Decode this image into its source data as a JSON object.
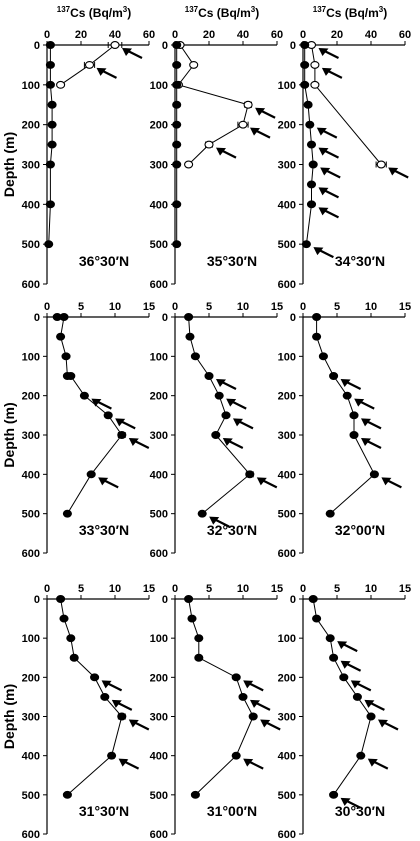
{
  "figure": {
    "header_label": "Cs (Bq/m",
    "header_isotope_mass": "137",
    "header_unit_exponent": "3",
    "header_close": ")",
    "ylabel": "Depth (m)"
  },
  "colors": {
    "ink": "#000000",
    "background": "#ffffff",
    "open_marker_fill": "#ffffff"
  },
  "chart_data": [
    {
      "type": "line",
      "title": "36°30′N",
      "xlim": [
        0,
        60
      ],
      "xticks": [
        "0",
        "20",
        "40",
        "60"
      ],
      "ylim": [
        0,
        600
      ],
      "yticks": [
        "0",
        "100",
        "200",
        "300",
        "400",
        "500",
        "600"
      ],
      "ylabel": "Depth (m)",
      "header": true,
      "series": [
        {
          "marker": "open",
          "x": [
            40,
            25,
            8
          ],
          "y": [
            0,
            50,
            100
          ],
          "err": [
            4,
            3,
            1
          ],
          "arrows": [
            true,
            true,
            false
          ]
        },
        {
          "marker": "filled",
          "x": [
            2,
            2,
            2,
            3,
            3,
            3,
            2,
            2,
            1
          ],
          "y": [
            0,
            50,
            100,
            150,
            200,
            250,
            300,
            400,
            500
          ],
          "err": [
            0,
            0,
            0,
            0,
            0,
            0,
            0,
            0,
            0
          ],
          "arrows": [
            false,
            false,
            false,
            false,
            false,
            false,
            false,
            false,
            false
          ]
        }
      ]
    },
    {
      "type": "line",
      "title": "35°30′N",
      "xlim": [
        0,
        60
      ],
      "xticks": [
        "0",
        "20",
        "40",
        "60"
      ],
      "ylim": [
        0,
        600
      ],
      "yticks": [
        "0",
        "100",
        "200",
        "300",
        "400",
        "500",
        "600"
      ],
      "ylabel": "",
      "header": true,
      "series": [
        {
          "marker": "open",
          "x": [
            3,
            11,
            2,
            43,
            40,
            20,
            8
          ],
          "y": [
            0,
            50,
            100,
            150,
            200,
            250,
            300
          ],
          "err": [
            0,
            0,
            0,
            2,
            3,
            2,
            0
          ],
          "arrows": [
            false,
            false,
            false,
            true,
            true,
            true,
            false
          ]
        },
        {
          "marker": "filled",
          "x": [
            1,
            1,
            1,
            1,
            1,
            1,
            1,
            1,
            1
          ],
          "y": [
            0,
            50,
            100,
            150,
            200,
            250,
            300,
            400,
            500
          ],
          "err": [
            0,
            0,
            0,
            0,
            0,
            0,
            0,
            0,
            0
          ],
          "arrows": [
            false,
            false,
            false,
            false,
            false,
            false,
            false,
            false,
            false
          ]
        }
      ]
    },
    {
      "type": "line",
      "title": "34°30′N",
      "xlim": [
        0,
        60
      ],
      "xticks": [
        "0",
        "20",
        "40",
        "60"
      ],
      "ylim": [
        0,
        600
      ],
      "yticks": [
        "0",
        "100",
        "200",
        "300",
        "400",
        "500",
        "600"
      ],
      "ylabel": "",
      "header": true,
      "series": [
        {
          "marker": "open",
          "x": [
            5,
            7,
            7,
            46
          ],
          "y": [
            0,
            50,
            100,
            300
          ],
          "err": [
            0,
            0,
            0,
            3
          ],
          "arrows": [
            true,
            true,
            false,
            true
          ]
        },
        {
          "marker": "filled",
          "x": [
            1,
            1,
            1,
            3,
            4,
            5,
            6,
            5,
            5,
            2
          ],
          "y": [
            0,
            50,
            100,
            150,
            200,
            250,
            300,
            350,
            400,
            500
          ],
          "err": [
            0,
            0,
            0,
            0,
            0,
            0,
            0,
            0,
            0,
            0
          ],
          "arrows": [
            false,
            false,
            false,
            false,
            true,
            true,
            true,
            true,
            true,
            true
          ]
        }
      ]
    },
    {
      "type": "line",
      "title": "33°30′N",
      "xlim": [
        0,
        15
      ],
      "xticks": [
        "0",
        "5",
        "10",
        "15"
      ],
      "ylim": [
        0,
        600
      ],
      "yticks": [
        "0",
        "100",
        "200",
        "300",
        "400",
        "500",
        "600"
      ],
      "ylabel": "Depth (m)",
      "header": false,
      "series": [
        {
          "marker": "filled",
          "x": [
            1.5,
            2.5,
            2.0,
            2.8,
            3.0,
            3.5,
            5.5,
            9.0,
            11.0,
            6.5,
            3.0
          ],
          "y": [
            0,
            0,
            50,
            100,
            150,
            150,
            200,
            250,
            300,
            400,
            500
          ],
          "err": [
            0,
            0.3,
            0,
            0.2,
            0.3,
            0,
            0.3,
            0.4,
            0.5,
            0.3,
            0
          ],
          "arrows": [
            false,
            false,
            false,
            false,
            false,
            false,
            true,
            true,
            true,
            true,
            false
          ]
        }
      ]
    },
    {
      "type": "line",
      "title": "32°30′N",
      "xlim": [
        0,
        15
      ],
      "xticks": [
        "0",
        "5",
        "10",
        "15"
      ],
      "ylim": [
        0,
        600
      ],
      "yticks": [
        "0",
        "100",
        "200",
        "300",
        "400",
        "500",
        "600"
      ],
      "ylabel": "",
      "header": false,
      "series": [
        {
          "marker": "filled",
          "x": [
            2.0,
            2.2,
            3.0,
            5.0,
            6.5,
            7.5,
            6.0,
            11.0,
            4.0
          ],
          "y": [
            0,
            50,
            100,
            150,
            200,
            250,
            300,
            400,
            500
          ],
          "err": [
            0.3,
            0,
            0,
            0,
            0,
            0.3,
            0.3,
            0.5,
            0
          ],
          "arrows": [
            false,
            false,
            false,
            true,
            true,
            true,
            true,
            true,
            true
          ]
        }
      ]
    },
    {
      "type": "line",
      "title": "32°00′N",
      "xlim": [
        0,
        15
      ],
      "xticks": [
        "0",
        "5",
        "10",
        "15"
      ],
      "ylim": [
        0,
        600
      ],
      "yticks": [
        "0",
        "100",
        "200",
        "300",
        "400",
        "500",
        "600"
      ],
      "ylabel": "",
      "header": false,
      "series": [
        {
          "marker": "filled",
          "x": [
            2.0,
            2.0,
            3.0,
            4.5,
            6.5,
            7.5,
            7.5,
            10.5,
            4.0
          ],
          "y": [
            0,
            50,
            100,
            150,
            200,
            250,
            300,
            400,
            500
          ],
          "err": [
            0,
            0,
            0,
            0,
            0,
            0.3,
            0.3,
            0.4,
            0
          ],
          "arrows": [
            false,
            false,
            false,
            true,
            true,
            true,
            true,
            true,
            false
          ]
        }
      ]
    },
    {
      "type": "line",
      "title": "31°30′N",
      "xlim": [
        0,
        15
      ],
      "xticks": [
        "0",
        "5",
        "10",
        "15"
      ],
      "ylim": [
        0,
        600
      ],
      "yticks": [
        "0",
        "100",
        "200",
        "300",
        "400",
        "500",
        "600"
      ],
      "ylabel": "Depth (m)",
      "header": false,
      "series": [
        {
          "marker": "filled",
          "x": [
            2.0,
            2.5,
            3.5,
            4.0,
            7.0,
            8.5,
            11.0,
            9.5,
            3.0
          ],
          "y": [
            0,
            50,
            100,
            150,
            200,
            250,
            300,
            400,
            500
          ],
          "err": [
            0.3,
            0,
            0,
            0,
            0.3,
            0.3,
            0.5,
            0.4,
            0
          ],
          "arrows": [
            false,
            false,
            false,
            false,
            true,
            true,
            true,
            true,
            false
          ]
        }
      ]
    },
    {
      "type": "line",
      "title": "31°00′N",
      "xlim": [
        0,
        15
      ],
      "xticks": [
        "0",
        "5",
        "10",
        "15"
      ],
      "ylim": [
        0,
        600
      ],
      "yticks": [
        "0",
        "100",
        "200",
        "300",
        "400",
        "500",
        "600"
      ],
      "ylabel": "",
      "header": false,
      "series": [
        {
          "marker": "filled",
          "x": [
            2.0,
            2.5,
            3.5,
            3.5,
            9.0,
            10.0,
            11.5,
            9.0,
            3.0
          ],
          "y": [
            0,
            50,
            100,
            150,
            200,
            250,
            300,
            400,
            500
          ],
          "err": [
            0.3,
            0,
            0,
            0,
            0.3,
            0.3,
            0.3,
            0.3,
            0
          ],
          "arrows": [
            false,
            false,
            false,
            false,
            true,
            true,
            true,
            true,
            false
          ]
        }
      ]
    },
    {
      "type": "line",
      "title": "30°30′N",
      "xlim": [
        0,
        15
      ],
      "xticks": [
        "0",
        "5",
        "10",
        "15"
      ],
      "ylim": [
        0,
        600
      ],
      "yticks": [
        "0",
        "100",
        "200",
        "300",
        "400",
        "500",
        "600"
      ],
      "ylabel": "",
      "header": false,
      "series": [
        {
          "marker": "filled",
          "x": [
            1.5,
            2.0,
            4.0,
            4.5,
            6.0,
            8.0,
            10.0,
            8.5,
            4.5
          ],
          "y": [
            0,
            50,
            100,
            150,
            200,
            250,
            300,
            400,
            500
          ],
          "err": [
            0.3,
            0,
            0.3,
            0,
            0.3,
            0.3,
            0.3,
            0.3,
            0
          ],
          "arrows": [
            false,
            false,
            true,
            true,
            true,
            true,
            true,
            true,
            true
          ]
        }
      ]
    }
  ]
}
